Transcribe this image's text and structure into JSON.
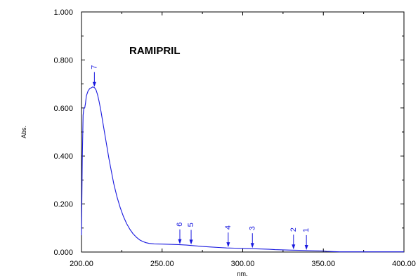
{
  "chart_data": {
    "type": "line",
    "title": "RAMIPRIL",
    "xlabel": "nm.",
    "ylabel": "Abs.",
    "xlim": [
      200,
      400
    ],
    "ylim": [
      0,
      1
    ],
    "grid": false,
    "line_color": "#1a1adf",
    "axis_color": "#000000",
    "x_ticks": [
      200,
      250,
      300,
      350,
      400
    ],
    "x_tick_labels": [
      "200.00",
      "250.00",
      "300.00",
      "350.00",
      "400.00"
    ],
    "y_ticks": [
      0,
      0.2,
      0.4,
      0.6,
      0.8,
      1.0
    ],
    "y_tick_labels": [
      "0.000",
      "0.200",
      "0.400",
      "0.600",
      "0.800",
      "1.000"
    ],
    "series": [
      {
        "x": [
          200.0,
          200.5,
          201.0,
          201.5,
          202.0,
          202.5,
          203.0,
          204.0,
          205.0,
          206.0,
          207.0,
          208.0,
          209.0,
          210.0,
          211.0,
          212.0,
          213.0,
          214.0,
          215.0,
          216.0,
          217.0,
          218.0,
          219.0,
          220.0,
          222.0,
          224.0,
          226.0,
          228.0,
          230.0,
          232.0,
          234.0,
          236.0,
          238.0,
          240.0,
          242.0,
          245.0,
          250.0,
          255.0,
          260.0,
          265.0,
          270.0,
          275.0,
          280.0,
          285.0,
          290.0,
          295.0,
          300.0,
          305.0,
          310.0,
          315.0,
          320.0,
          325.0,
          330.0,
          335.0,
          340.0,
          345.0,
          350.0,
          352.0,
          355.0,
          360.0,
          370.0,
          380.0,
          390.0,
          400.0
        ],
        "y": [
          0.07,
          0.38,
          0.57,
          0.6,
          0.6,
          0.62,
          0.65,
          0.67,
          0.68,
          0.684,
          0.688,
          0.685,
          0.675,
          0.655,
          0.625,
          0.59,
          0.55,
          0.51,
          0.47,
          0.43,
          0.39,
          0.355,
          0.32,
          0.285,
          0.23,
          0.185,
          0.148,
          0.118,
          0.095,
          0.076,
          0.062,
          0.051,
          0.044,
          0.039,
          0.036,
          0.034,
          0.033,
          0.032,
          0.031,
          0.029,
          0.026,
          0.023,
          0.021,
          0.019,
          0.017,
          0.016,
          0.015,
          0.014,
          0.013,
          0.012,
          0.01,
          0.009,
          0.008,
          0.007,
          0.006,
          0.005,
          0.004,
          0.003,
          0.002,
          0.001,
          0.001,
          0.001,
          0.001,
          0.001
        ]
      }
    ],
    "peak_markers": [
      {
        "label": "7",
        "x": 208.0,
        "y": 0.685
      },
      {
        "label": "6",
        "x": 261.0,
        "y": 0.03
      },
      {
        "label": "5",
        "x": 268.0,
        "y": 0.028
      },
      {
        "label": "4",
        "x": 291.0,
        "y": 0.017
      },
      {
        "label": "3",
        "x": 306.0,
        "y": 0.014
      },
      {
        "label": "2",
        "x": 331.5,
        "y": 0.008
      },
      {
        "label": "1",
        "x": 339.5,
        "y": 0.006
      }
    ]
  }
}
